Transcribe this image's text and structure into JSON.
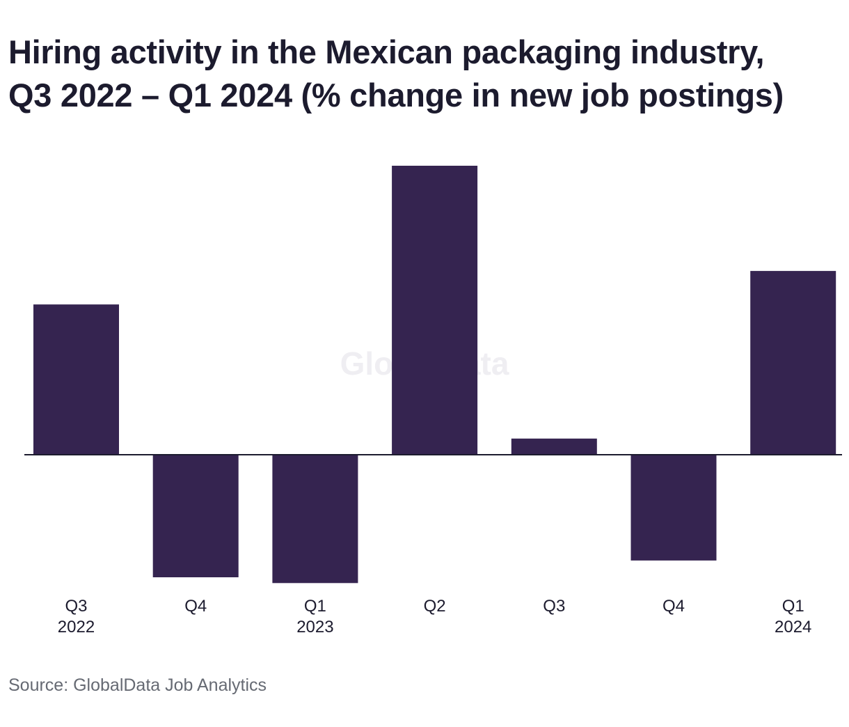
{
  "title_lines": [
    "Hiring activity in the Mexican packaging industry,",
    "Q3 2022 – Q1 2024 (% change in new job postings)"
  ],
  "source": "Source: GlobalData Job Analytics",
  "watermark": "GlobalData",
  "colors": {
    "bar": "#352450",
    "axis": "#1c1b2e",
    "text": "#1c1b2e"
  },
  "chart_data": {
    "type": "bar",
    "title": "Hiring activity in the Mexican packaging industry, Q3 2022 – Q1 2024 (% change in new job postings)",
    "categories": [
      "Q3 2022",
      "Q4",
      "Q1 2023",
      "Q2",
      "Q3",
      "Q4",
      "Q1 2024"
    ],
    "category_labels": [
      [
        "Q3",
        "2022"
      ],
      [
        "Q4"
      ],
      [
        "Q1",
        "2023"
      ],
      [
        "Q2"
      ],
      [
        "Q3"
      ],
      [
        "Q4"
      ],
      [
        "Q1",
        "2024"
      ]
    ],
    "values": [
      26,
      -21.2,
      -22.2,
      50,
      2.8,
      -18.3,
      31.8
    ],
    "ylim": [
      -22.2,
      50
    ],
    "xlabel": "",
    "ylabel": "",
    "grid": false,
    "legend": "none"
  }
}
